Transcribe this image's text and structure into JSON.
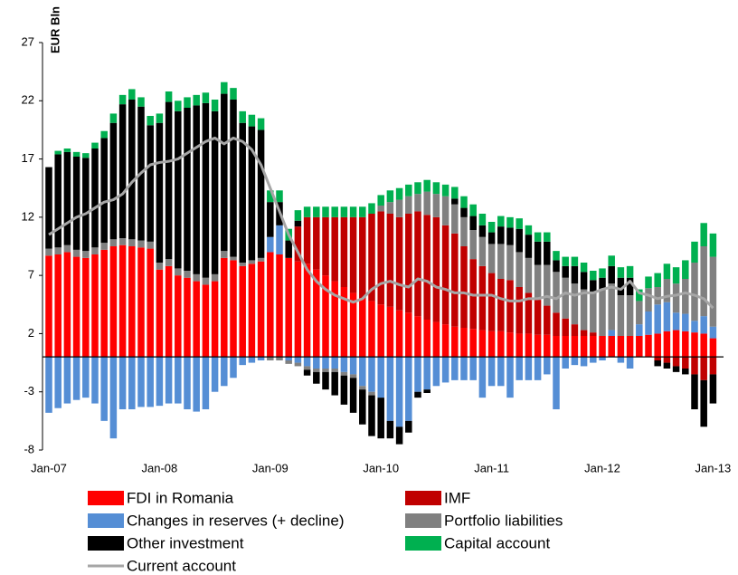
{
  "chart_data": {
    "type": "bar",
    "stacked": true,
    "y_label": "EUR Bln",
    "ylim": [
      -8,
      27
    ],
    "yticks": [
      -8,
      -3,
      2,
      7,
      12,
      17,
      22,
      27
    ],
    "categories": [
      "Jan-07",
      null,
      null,
      null,
      null,
      null,
      null,
      null,
      null,
      null,
      null,
      null,
      "Jan-08",
      null,
      null,
      null,
      null,
      null,
      null,
      null,
      null,
      null,
      null,
      null,
      "Jan-09",
      null,
      null,
      null,
      null,
      null,
      null,
      null,
      null,
      null,
      null,
      null,
      "Jan-10",
      null,
      null,
      null,
      null,
      null,
      null,
      null,
      null,
      null,
      null,
      null,
      "Jan-11",
      null,
      null,
      null,
      null,
      null,
      null,
      null,
      null,
      null,
      null,
      null,
      "Jan-12",
      null,
      null,
      null,
      null,
      null,
      null,
      null,
      null,
      null,
      null,
      null,
      "Jan-13"
    ],
    "series": [
      {
        "name": "FDI in Romania",
        "color": "#ff0000",
        "values": [
          8.7,
          8.8,
          9.0,
          8.6,
          8.5,
          8.8,
          9.2,
          9.5,
          9.6,
          9.5,
          9.4,
          9.3,
          7.5,
          7.8,
          7.0,
          6.8,
          6.5,
          6.2,
          6.5,
          8.5,
          8.3,
          7.8,
          8.0,
          8.2,
          9.0,
          8.8,
          8.5,
          8.2,
          8.0,
          7.5,
          7.0,
          6.5,
          6.0,
          5.5,
          5.0,
          4.8,
          4.5,
          4.3,
          4.0,
          3.8,
          3.5,
          3.2,
          3.0,
          2.8,
          2.6,
          2.5,
          2.4,
          2.3,
          2.2,
          2.2,
          2.1,
          2.0,
          2.0,
          1.9,
          1.9,
          1.8,
          1.8,
          1.8,
          1.8,
          1.8,
          1.8,
          1.8,
          1.8,
          1.8,
          1.8,
          1.9,
          2.0,
          2.2,
          2.3,
          2.2,
          2.1,
          2.0,
          1.6
        ]
      },
      {
        "name": "IMF",
        "color": "#c00000",
        "values": [
          0,
          0,
          0,
          0,
          0,
          0,
          0,
          0,
          0,
          0,
          0,
          0,
          0,
          0,
          0,
          0,
          0,
          0,
          0,
          0,
          0,
          0,
          0,
          0,
          0,
          0,
          0,
          3,
          4,
          4.5,
          5,
          5.5,
          6,
          6.5,
          7,
          7.5,
          8,
          8,
          8,
          8.5,
          9,
          9,
          9,
          8.5,
          8,
          7,
          6,
          5.5,
          5,
          4.5,
          4.5,
          4,
          3.5,
          3,
          2.5,
          2,
          1.5,
          1,
          0.5,
          0.3,
          0,
          0,
          0,
          0,
          0,
          0,
          -0.3,
          -0.5,
          -0.8,
          -1,
          -1.5,
          -2,
          -1.5
        ]
      },
      {
        "name": "Changes in reserves (+ decline)",
        "color": "#558ed5",
        "values": [
          -4.8,
          -4.4,
          -4.0,
          -3.7,
          -3.5,
          -4.0,
          -5.5,
          -7.0,
          -4.5,
          -4.5,
          -4.3,
          -4.3,
          -4.2,
          -4.0,
          -4.0,
          -4.5,
          -4.7,
          -4.5,
          -3.0,
          -2.5,
          -1.8,
          -0.7,
          -0.5,
          -0.3,
          1.3,
          2.5,
          -0.3,
          -0.5,
          -0.8,
          -1.0,
          -1.0,
          -1.0,
          -1.3,
          -1.5,
          -2.5,
          -3.0,
          -3.5,
          -5.5,
          -6.0,
          -5.5,
          -3.0,
          -2.8,
          -2.5,
          -2.2,
          -2.0,
          -2.0,
          -2.0,
          -3.5,
          -2.5,
          -2.5,
          -3.5,
          -2.0,
          -2.0,
          -2.0,
          -1.5,
          -4.5,
          -1.0,
          -0.7,
          -0.8,
          -0.5,
          -0.3,
          0.5,
          -0.5,
          -1.0,
          1.0,
          2.0,
          2.5,
          2.5,
          1.5,
          1.5,
          1.0,
          1.5,
          1.0
        ]
      },
      {
        "name": "Portfolio liabilities",
        "color": "#808080",
        "values": [
          0.6,
          0.6,
          0.6,
          0.6,
          0.6,
          0.6,
          0.6,
          0.6,
          0.6,
          0.6,
          0.6,
          0.6,
          0.6,
          0.6,
          0.6,
          0.6,
          0.6,
          0.6,
          0.6,
          0.6,
          0.3,
          0.3,
          0.3,
          0.3,
          -0.3,
          -0.3,
          -0.3,
          -0.3,
          -0.3,
          -0.3,
          -0.3,
          -0.3,
          -0.3,
          -0.3,
          -0.3,
          -0.3,
          0.5,
          1,
          1.5,
          1.5,
          1.5,
          2,
          2,
          2.5,
          2.5,
          2.5,
          2.5,
          2.5,
          2.5,
          3,
          3,
          3,
          3,
          3,
          3.5,
          3.5,
          3.5,
          3.5,
          3.5,
          3.5,
          4,
          4,
          3.5,
          3.5,
          2,
          2,
          1.5,
          2,
          2.5,
          3,
          5,
          6,
          6
        ]
      },
      {
        "name": "Other investment",
        "color": "#000000",
        "values": [
          7.0,
          8,
          8,
          8,
          8,
          8.5,
          9,
          10,
          11.5,
          12,
          11.5,
          10,
          12,
          13.5,
          13.5,
          14,
          14.5,
          15,
          14,
          13.5,
          13.5,
          12,
          11.5,
          11,
          3,
          2,
          1.5,
          0.5,
          -0.5,
          -1,
          -1.5,
          -2,
          -2.5,
          -3,
          -3,
          -3.5,
          -3.5,
          -1.5,
          -1.5,
          -1,
          -0.5,
          -0.3,
          0,
          0,
          0.5,
          0.8,
          1.2,
          1,
          1,
          1.5,
          1.5,
          2,
          2,
          2,
          2,
          1,
          1,
          1.5,
          1.5,
          1,
          1,
          1.5,
          1.5,
          1.5,
          0,
          0,
          -0.5,
          -0.5,
          -0.5,
          -0.5,
          -3.0,
          -4.0,
          -2.5
        ]
      },
      {
        "name": "Capital account",
        "color": "#00b050",
        "values": [
          0,
          0.3,
          0.3,
          0.4,
          0.4,
          0.5,
          0.6,
          0.8,
          0.8,
          0.9,
          0.8,
          0.8,
          0.8,
          0.9,
          0.9,
          0.9,
          0.9,
          0.9,
          1.0,
          1.0,
          1.0,
          1.0,
          1.0,
          1.0,
          1.0,
          1.0,
          1.0,
          0.9,
          0.9,
          0.9,
          0.9,
          0.9,
          0.9,
          0.9,
          0.9,
          0.9,
          0.9,
          1.0,
          1.0,
          1.0,
          1.0,
          1.0,
          1.0,
          1.0,
          1.0,
          1.0,
          1.0,
          1.0,
          0.9,
          0.9,
          0.9,
          0.9,
          0.8,
          0.8,
          0.8,
          0.8,
          0.8,
          0.8,
          0.8,
          0.8,
          0.8,
          0.9,
          0.9,
          1.0,
          1.0,
          1.0,
          1.2,
          1.3,
          1.4,
          1.6,
          1.8,
          2.0,
          2.0
        ]
      },
      {
        "name": "Current account",
        "type": "line",
        "color": "#a6a6a6",
        "values": [
          10.5,
          11,
          11.5,
          12,
          12.3,
          12.8,
          13.3,
          13.5,
          14,
          15,
          15.8,
          16.5,
          16.7,
          16.8,
          17,
          17.5,
          18,
          18.5,
          18.8,
          18.3,
          18.8,
          18.5,
          17.8,
          16.5,
          14.5,
          12.5,
          10.5,
          9,
          7.5,
          6.5,
          5.8,
          5.3,
          5,
          4.7,
          5,
          5.8,
          6.3,
          6.5,
          6.2,
          6,
          6.7,
          6.5,
          6,
          5.8,
          5.5,
          5.5,
          5.3,
          5.3,
          5.3,
          5,
          4.8,
          4.8,
          5,
          5,
          5.2,
          5,
          5.5,
          5.3,
          5.5,
          5.5,
          5.8,
          6,
          5.8,
          6.5,
          5.5,
          5.3,
          5,
          5.2,
          5.3,
          5.5,
          5.3,
          5,
          4.2
        ]
      }
    ]
  }
}
